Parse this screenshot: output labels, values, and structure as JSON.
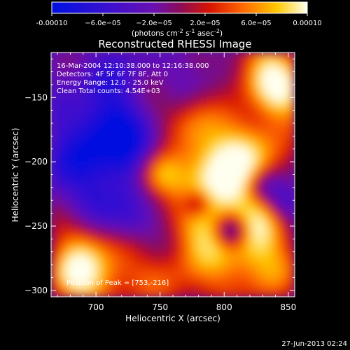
{
  "chart_data": {
    "type": "heatmap",
    "title": "Reconstructed RHESSI Image",
    "xlabel": "Heliocentric X (arcsec)",
    "ylabel": "Heliocentric Y (arcsec)",
    "xlim": [
      665,
      855
    ],
    "ylim": [
      -305,
      -115
    ],
    "x_ticks": [
      700,
      750,
      800,
      850
    ],
    "y_ticks": [
      -150,
      -200,
      -250,
      -300
    ],
    "colorbar": {
      "label_prefix": "(photons cm",
      "label_sup1": "-2",
      "label_mid": " s",
      "label_sup2": "-1",
      "label_suffix": " asec",
      "label_sup3": "-2",
      "label_end": ")",
      "ticks": [
        "-0.00010",
        "−6.0e−05",
        "−2.0e−05",
        "2.0e−05",
        "6.0e−05",
        "0.00010"
      ],
      "range": [
        -0.0001,
        0.0001
      ]
    },
    "annotations": [
      "16-Mar-2004 12:10:38.000 to 12:16:38.000",
      "Detectors: 4F 5F 6F 7F 8F, Att 0",
      "Energy Range: 12.0 - 25.0 keV",
      "Clean     Total counts: 4.54E+03"
    ],
    "peak_label": "Position of Peak = [753,-216]",
    "peak": [
      753,
      -216
    ],
    "grid": false
  },
  "footer_timestamp": "27-Jun-2013 02:24"
}
